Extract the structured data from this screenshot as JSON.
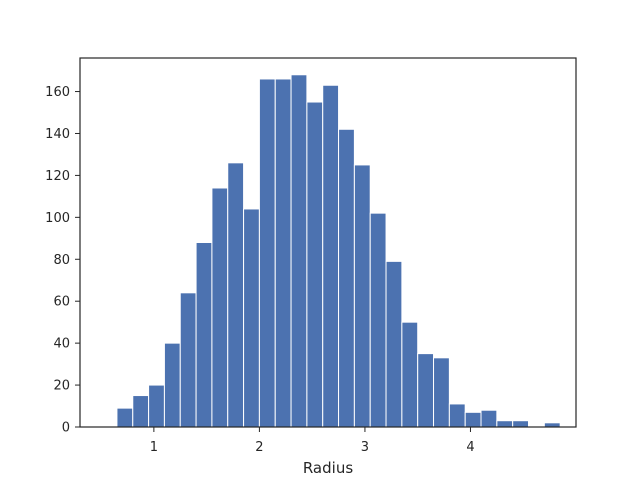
{
  "chart_data": {
    "type": "bar",
    "title": "",
    "xlabel": "Radius",
    "ylabel": "",
    "xlim": [
      0.3,
      5.0
    ],
    "ylim": [
      0,
      176
    ],
    "xticks": [
      1,
      2,
      3,
      4
    ],
    "yticks": [
      0,
      20,
      40,
      60,
      80,
      100,
      120,
      140,
      160
    ],
    "grid": false,
    "bar_color": "#4c72b0",
    "bins": [
      {
        "x0": 0.65,
        "x1": 0.8,
        "count": 9
      },
      {
        "x0": 0.8,
        "x1": 0.95,
        "count": 15
      },
      {
        "x0": 0.95,
        "x1": 1.1,
        "count": 20
      },
      {
        "x0": 1.1,
        "x1": 1.25,
        "count": 40
      },
      {
        "x0": 1.25,
        "x1": 1.4,
        "count": 64
      },
      {
        "x0": 1.4,
        "x1": 1.55,
        "count": 88
      },
      {
        "x0": 1.55,
        "x1": 1.7,
        "count": 114
      },
      {
        "x0": 1.7,
        "x1": 1.85,
        "count": 126
      },
      {
        "x0": 1.85,
        "x1": 2.0,
        "count": 104
      },
      {
        "x0": 2.0,
        "x1": 2.15,
        "count": 166
      },
      {
        "x0": 2.15,
        "x1": 2.3,
        "count": 166
      },
      {
        "x0": 2.3,
        "x1": 2.45,
        "count": 168
      },
      {
        "x0": 2.45,
        "x1": 2.6,
        "count": 155
      },
      {
        "x0": 2.6,
        "x1": 2.75,
        "count": 163
      },
      {
        "x0": 2.75,
        "x1": 2.9,
        "count": 142
      },
      {
        "x0": 2.9,
        "x1": 3.05,
        "count": 125
      },
      {
        "x0": 3.05,
        "x1": 3.2,
        "count": 102
      },
      {
        "x0": 3.2,
        "x1": 3.35,
        "count": 79
      },
      {
        "x0": 3.35,
        "x1": 3.5,
        "count": 50
      },
      {
        "x0": 3.5,
        "x1": 3.65,
        "count": 35
      },
      {
        "x0": 3.65,
        "x1": 3.8,
        "count": 33
      },
      {
        "x0": 3.8,
        "x1": 3.95,
        "count": 11
      },
      {
        "x0": 3.95,
        "x1": 4.1,
        "count": 7
      },
      {
        "x0": 4.1,
        "x1": 4.25,
        "count": 8
      },
      {
        "x0": 4.25,
        "x1": 4.4,
        "count": 3
      },
      {
        "x0": 4.4,
        "x1": 4.55,
        "count": 3
      },
      {
        "x0": 4.55,
        "x1": 4.7,
        "count": 0
      },
      {
        "x0": 4.7,
        "x1": 4.85,
        "count": 2
      }
    ]
  }
}
